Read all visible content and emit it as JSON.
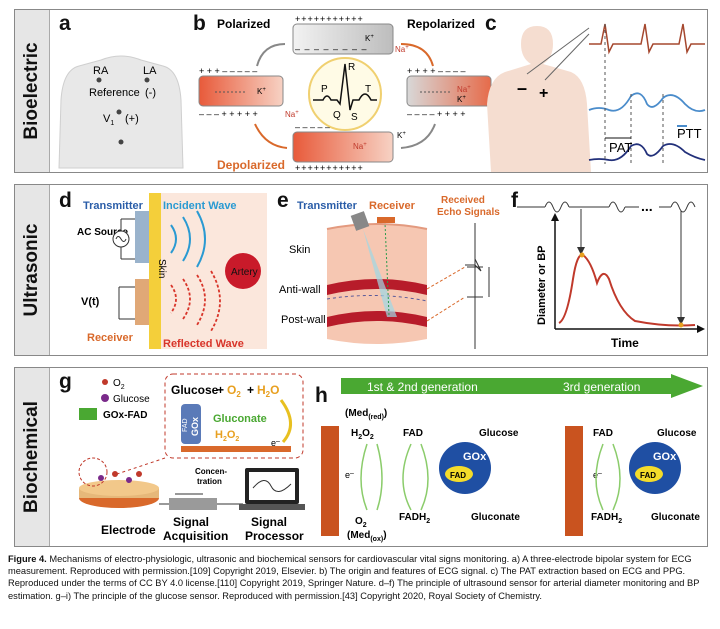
{
  "panels": {
    "bioelectric": {
      "label": "Bioelectric",
      "a": {
        "letter": "a",
        "ra": "RA",
        "la": "LA",
        "reference": "Reference",
        "minus": "(-)",
        "v1": "V",
        "v1_sub": "1",
        "plus": "(+)"
      },
      "b": {
        "letter": "b",
        "polarized": "Polarized",
        "repolarized": "Repolarized",
        "depolarized": "Depolarized",
        "na": "Na",
        "k": "K",
        "p": "P",
        "q": "Q",
        "r": "R",
        "s": "S",
        "t": "T"
      },
      "c": {
        "letter": "c",
        "minus": "–",
        "plus": "+",
        "pat": "PAT",
        "ptt": "PTT"
      }
    },
    "ultrasonic": {
      "label": "Ultrasonic",
      "d": {
        "letter": "d",
        "transmitter": "Transmitter",
        "incident_wave": "Incident Wave",
        "ac_source": "AC\nSource",
        "skin": "Skin",
        "artery": "Artery",
        "vt": "V(t)",
        "receiver": "Receiver",
        "reflected_wave": "Reflected Wave"
      },
      "e": {
        "letter": "e",
        "transmitter": "Transmitter",
        "receiver": "Receiver",
        "echo": "Received\nEcho Signals",
        "skin": "Skin",
        "anti_wall": "Anti-wall",
        "post_wall": "Post-wall"
      },
      "f": {
        "letter": "f",
        "ylabel": "Diameter or BP",
        "xlabel": "Time",
        "dots": "..."
      }
    },
    "biochemical": {
      "label": "Biochemical",
      "g": {
        "letter": "g",
        "o2": "O",
        "glucose": "Glucose",
        "gox_fad": "GOx-FAD",
        "eq_glucose": "Glucose",
        "eq_o2": "O",
        "eq_h2o": "H",
        "eq_h2o_tail": "O",
        "gluconate": "Gluconate",
        "h2o2": "H",
        "electrode": "Electrode",
        "concentration": "Concen-\ntration",
        "signal_acquisition": "Signal\nAcquisition",
        "signal_processor": "Signal\nProcessor",
        "fad": "FAD",
        "gox": "GOx",
        "e_minus": "e"
      },
      "h": {
        "letter": "h",
        "gen12": "1st & 2nd  generation",
        "gen3": "3rd generation",
        "med_red": "(Med",
        "med_red_sub": "(red)",
        "h2o2": "H",
        "fad": "FAD",
        "glucose": "Glucose",
        "gox": "GOx",
        "e_minus": "e",
        "o2": "O",
        "med_ox": "(Med",
        "med_ox_sub": "(ox)",
        "fadh2": "FADH",
        "gluconate": "Gluconate"
      }
    }
  },
  "caption": {
    "fig": "Figure 4.",
    "text": "Mechanisms of electro-physiologic, ultrasonic and biochemical sensors for cardiovascular vital signs monitoring. a) A three-electrode bipolar system for ECG measurement. Reproduced with permission.[109] Copyright 2019, Elsevier. b) The origin and features of ECG signal. c) The PAT extraction based on ECG and PPG. Reproduced under the terms of CC BY 4.0 license.[110] Copyright 2019, Springer Nature. d–f) The principle of ultrasound sensor for arterial diameter monitoring and BP estimation. g–i) The principle of the glucose sensor. Reproduced with permission.[43] Copyright 2020, Royal Society of Chemistry."
  },
  "colors": {
    "accent_orange": "#d9692b",
    "arrow_green": "#4aa832",
    "ecg_red": "#a5482f",
    "ppg_blue": "#4a8ccb",
    "gox_blue": "#1f4fa3",
    "fad_yellow": "#f4dc2a",
    "electrode": "#c9531f"
  }
}
